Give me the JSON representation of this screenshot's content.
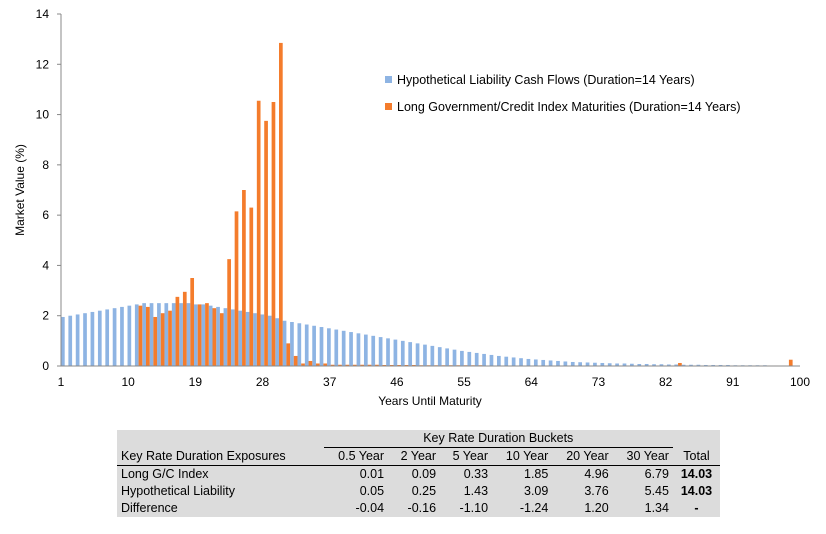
{
  "chart_data": {
    "type": "bar",
    "xlabel": "Years Until Maturity",
    "ylabel": "Market Value (%)",
    "ylim": [
      0,
      14
    ],
    "yticks": [
      0,
      2,
      4,
      6,
      8,
      10,
      12,
      14
    ],
    "xticks": [
      1,
      10,
      19,
      28,
      37,
      46,
      55,
      64,
      73,
      82,
      91,
      100
    ],
    "xlim": [
      1,
      100
    ],
    "grid": false,
    "legend_position": "top-right",
    "series": [
      {
        "name": "Hypothetical Liability Cash Flows (Duration=14 Years)",
        "color": "#8eb4e3",
        "x": [
          1,
          2,
          3,
          4,
          5,
          6,
          7,
          8,
          9,
          10,
          11,
          12,
          13,
          14,
          15,
          16,
          17,
          18,
          19,
          20,
          21,
          22,
          23,
          24,
          25,
          26,
          27,
          28,
          29,
          30,
          31,
          32,
          33,
          34,
          35,
          36,
          37,
          38,
          39,
          40,
          41,
          42,
          43,
          44,
          45,
          46,
          47,
          48,
          49,
          50,
          51,
          52,
          53,
          54,
          55,
          56,
          57,
          58,
          59,
          60,
          61,
          62,
          63,
          64,
          65,
          66,
          67,
          68,
          69,
          70,
          71,
          72,
          73,
          74,
          75,
          76,
          77,
          78,
          79,
          80,
          81,
          82,
          83,
          84,
          85,
          86,
          87,
          88,
          89,
          90,
          91,
          92,
          93,
          94,
          95,
          96,
          97,
          98,
          99,
          100
        ],
        "values": [
          1.95,
          2.0,
          2.05,
          2.1,
          2.15,
          2.2,
          2.25,
          2.3,
          2.35,
          2.4,
          2.45,
          2.5,
          2.5,
          2.5,
          2.5,
          2.5,
          2.5,
          2.5,
          2.45,
          2.45,
          2.4,
          2.35,
          2.3,
          2.25,
          2.2,
          2.15,
          2.1,
          2.05,
          2.0,
          1.9,
          1.8,
          1.75,
          1.7,
          1.65,
          1.6,
          1.55,
          1.5,
          1.45,
          1.4,
          1.35,
          1.3,
          1.25,
          1.2,
          1.15,
          1.1,
          1.05,
          1.0,
          0.95,
          0.9,
          0.85,
          0.8,
          0.75,
          0.7,
          0.65,
          0.6,
          0.56,
          0.52,
          0.48,
          0.44,
          0.4,
          0.37,
          0.34,
          0.31,
          0.28,
          0.26,
          0.24,
          0.22,
          0.2,
          0.18,
          0.16,
          0.15,
          0.14,
          0.13,
          0.12,
          0.11,
          0.1,
          0.1,
          0.09,
          0.08,
          0.08,
          0.07,
          0.07,
          0.06,
          0.06,
          0.05,
          0.05,
          0.05,
          0.04,
          0.04,
          0.04,
          0.04,
          0.03,
          0.03,
          0.03,
          0.03,
          0.03,
          0.02,
          0.02,
          0.02,
          0.02
        ]
      },
      {
        "name": "Long Government/Credit Index Maturities (Duration=14 Years)",
        "color": "#f47c2c",
        "x": [
          11,
          12,
          13,
          14,
          15,
          16,
          17,
          18,
          19,
          20,
          21,
          22,
          23,
          24,
          25,
          26,
          27,
          28,
          29,
          30,
          31,
          32,
          33,
          34,
          35,
          36,
          37,
          38,
          39,
          40,
          41,
          42,
          43,
          44,
          45,
          46,
          47,
          48,
          49,
          50,
          51,
          52,
          53,
          54,
          55,
          56,
          57,
          58,
          59,
          60,
          61,
          62,
          63,
          64,
          65,
          66,
          67,
          68,
          69,
          70,
          71,
          72,
          73,
          74,
          75,
          76,
          77,
          78,
          79,
          80,
          81,
          82,
          83,
          84,
          85,
          86,
          87,
          88,
          89,
          90,
          91,
          92,
          93,
          94,
          95,
          96,
          97,
          98,
          99
        ],
        "values": [
          2.4,
          2.35,
          1.95,
          2.1,
          2.2,
          2.75,
          2.95,
          3.5,
          2.45,
          2.5,
          2.3,
          2.1,
          4.25,
          6.15,
          7.0,
          6.3,
          10.55,
          9.75,
          10.5,
          12.85,
          0.9,
          0.4,
          0.1,
          0.2,
          0.1,
          0.1,
          0.05,
          0.05,
          0.05,
          0.05,
          0.05,
          0.05,
          0.05,
          0.04,
          0.04,
          0.04,
          0.04,
          0.04,
          0.03,
          0.03,
          0.03,
          0.03,
          0.03,
          0.03,
          0.03,
          0.03,
          0.03,
          0.02,
          0.02,
          0.02,
          0.02,
          0.02,
          0.02,
          0.02,
          0.02,
          0.02,
          0.02,
          0.02,
          0.02,
          0.02,
          0.02,
          0.02,
          0.02,
          0.02,
          0.02,
          0.02,
          0.02,
          0.02,
          0.02,
          0.02,
          0.02,
          0.02,
          0.02,
          0.12,
          0.02,
          0.02,
          0.02,
          0.02,
          0.02,
          0.02,
          0.02,
          0.02,
          0.02,
          0.02,
          0.02,
          0.02,
          0.02,
          0.02,
          0.25
        ]
      }
    ]
  },
  "table": {
    "bucket_title": "Key Rate Duration Buckets",
    "row_header": "Key Rate Duration Exposures",
    "columns": [
      "0.5 Year",
      "2 Year",
      "5 Year",
      "10 Year",
      "20 Year",
      "30 Year"
    ],
    "total_label": "Total",
    "rows": [
      {
        "label": "Long G/C Index",
        "values": [
          "0.01",
          "0.09",
          "0.33",
          "1.85",
          "4.96",
          "6.79"
        ],
        "total": "14.03"
      },
      {
        "label": "Hypothetical Liability",
        "values": [
          "0.05",
          "0.25",
          "1.43",
          "3.09",
          "3.76",
          "5.45"
        ],
        "total": "14.03"
      },
      {
        "label": "Difference",
        "values": [
          "-0.04",
          "-0.16",
          "-1.10",
          "-1.24",
          "1.20",
          "1.34"
        ],
        "total": "-"
      }
    ]
  }
}
